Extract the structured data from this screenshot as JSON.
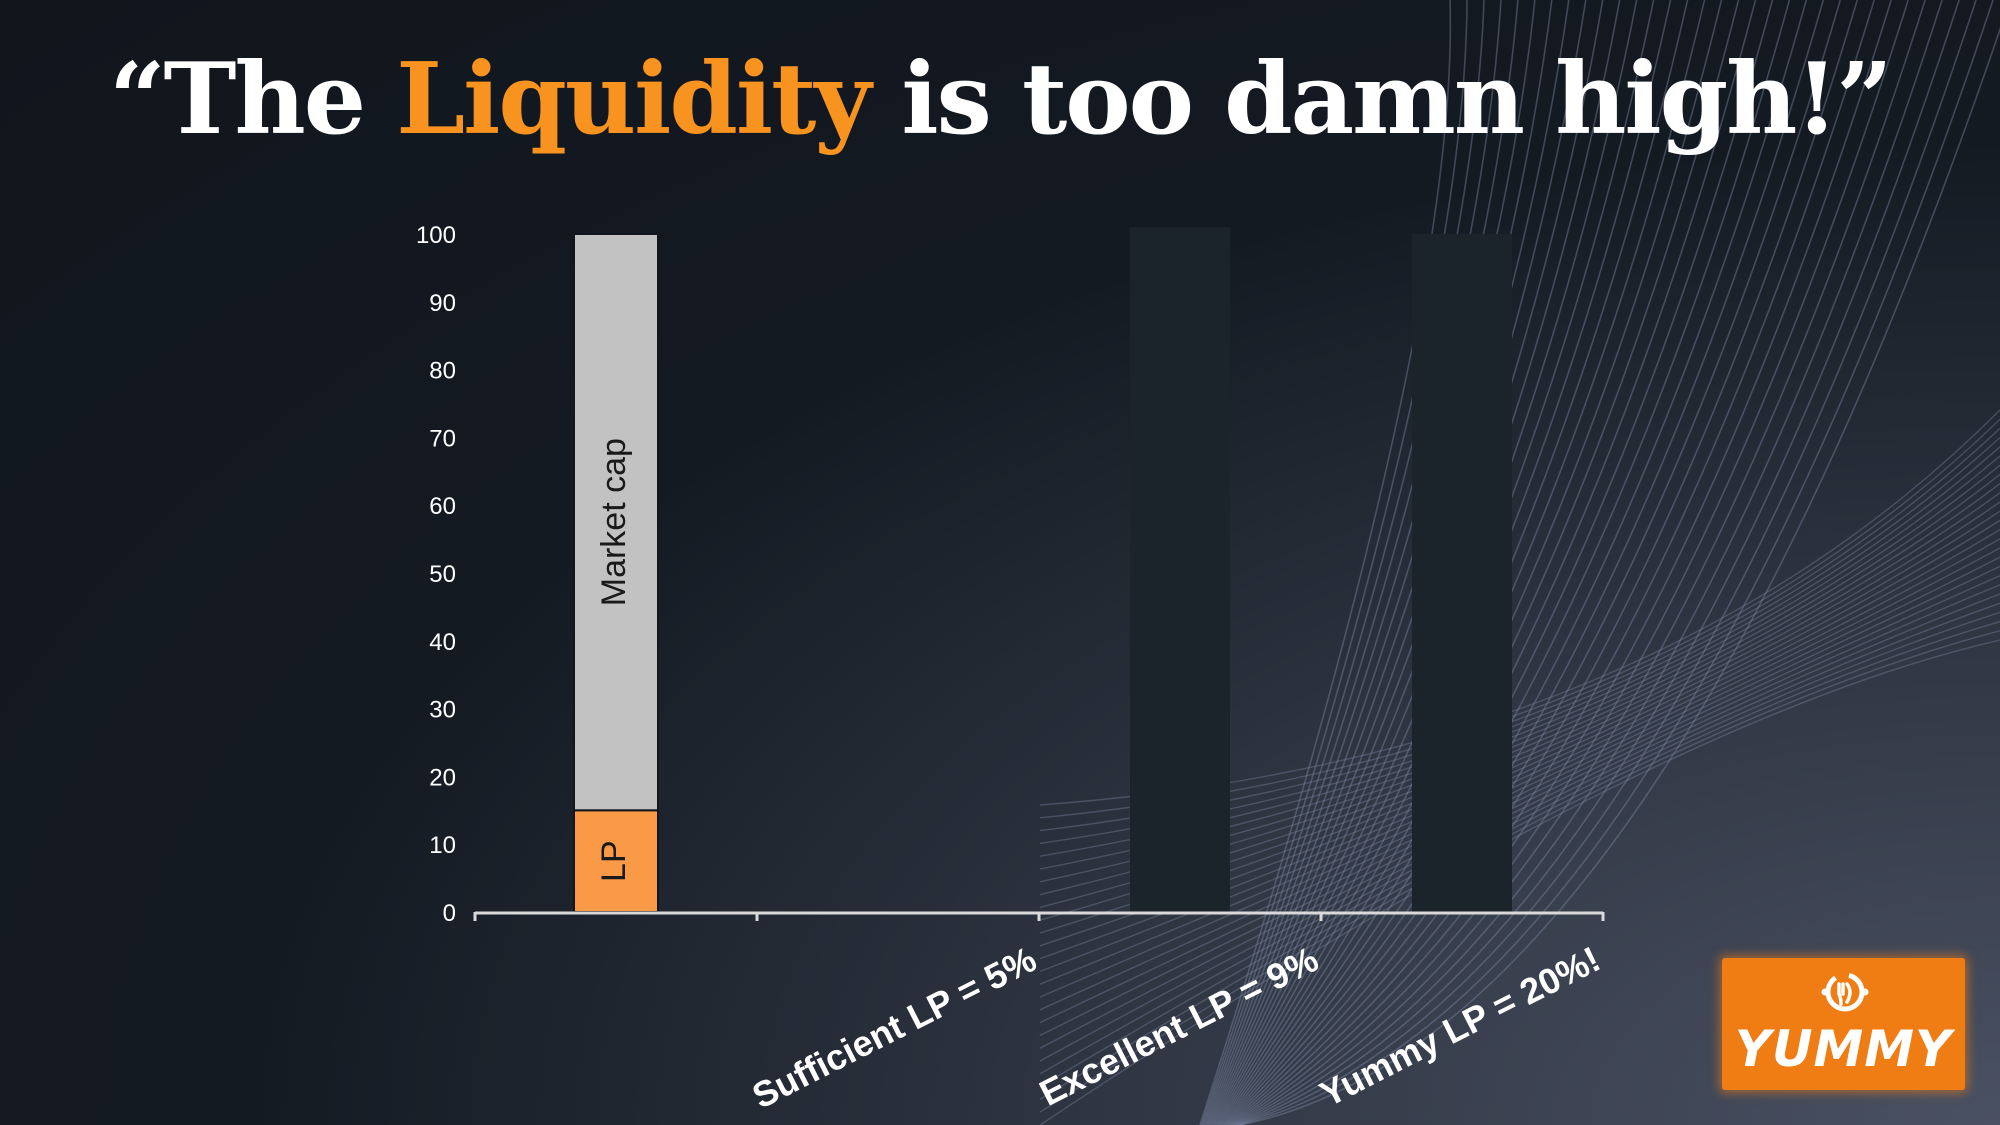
{
  "slide": {
    "title_pre": "“The ",
    "title_highlight": "Liquidity",
    "title_post": " is too damn high!”",
    "accent_color": "#f7931e"
  },
  "logo": {
    "text": "YUMMY",
    "icon": "yummy-logo-icon",
    "color": "#f07d14"
  },
  "chart_data": {
    "type": "bar",
    "stacked": true,
    "categories": [
      "",
      "Sufficient LP = 5%",
      "Excellent LP = 9%",
      "Yummy LP = 20%!"
    ],
    "series": [
      {
        "name": "LP",
        "values": [
          15,
          null,
          null,
          null
        ],
        "color": "#fb9a46"
      },
      {
        "name": "Market cap",
        "values": [
          85,
          null,
          null,
          null
        ],
        "color": "#c2c2c2"
      }
    ],
    "ghost_bars": [
      null,
      null,
      101,
      100
    ],
    "ghost_color": "#1b232b",
    "ylim": [
      0,
      100
    ],
    "yticks": [
      0,
      10,
      20,
      30,
      40,
      50,
      60,
      70,
      80,
      90,
      100
    ],
    "xlabel": "",
    "ylabel": "",
    "grid": false,
    "legend": "none"
  }
}
